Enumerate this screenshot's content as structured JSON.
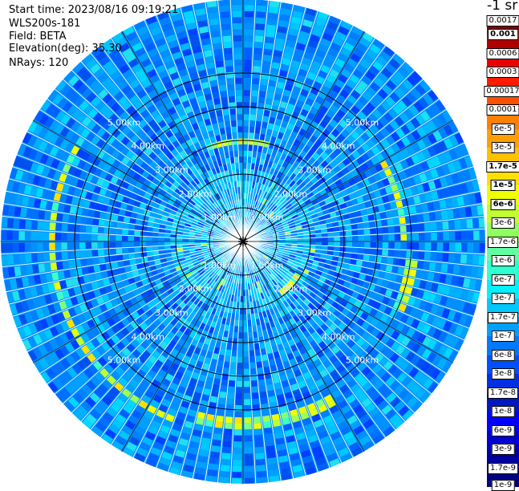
{
  "header": {
    "start_time": "Start time: 2023/08/16 09:19:21",
    "device": "WLS200s-181",
    "field": "Field: BETA",
    "elevation": "Elevation(deg): 35.30",
    "nrays": "NRays: 120"
  },
  "colorbar": {
    "units": "-1 sr",
    "labels": [
      "0.0017",
      "0.001",
      "0.0006",
      "0.0003",
      "0.00017",
      "0.0001",
      "6e-5",
      "3e-5",
      "1.7e-5",
      "1e-5",
      "6e-6",
      "3e-6",
      "1.7e-6",
      "1e-6",
      "6e-7",
      "3e-7",
      "1.7e-7",
      "1e-7",
      "6e-8",
      "3e-8",
      "1.7e-8",
      "1e-8",
      "6e-9",
      "3e-9",
      "1.7e-9",
      "1e-9"
    ],
    "colors": [
      "#800000",
      "#b00000",
      "#e80000",
      "#ff1a00",
      "#ff5000",
      "#ff7f00",
      "#ffa000",
      "#ffc000",
      "#ffe000",
      "#f0ff00",
      "#c0ff30",
      "#90ff60",
      "#60ffa0",
      "#30ffd0",
      "#00f0ff",
      "#00c8ff",
      "#00a0ff",
      "#0078ff",
      "#0050ff",
      "#0030e0",
      "#0018c0",
      "#0000ff",
      "#0000d0",
      "#0000a0",
      "#000080"
    ],
    "bold_labels": [
      "0.001",
      "1.7e-5",
      "1e-5",
      "6e-6"
    ]
  },
  "chart_data": {
    "type": "heatmap",
    "projection": "polar PPI scan",
    "field": "BETA",
    "elevation_deg": 35.3,
    "nrays": 120,
    "range_ring_labels": [
      "1.00km",
      "2.00km",
      "3.00km",
      "4.00km",
      "5.00km"
    ],
    "range_rings_km": [
      1,
      2,
      3,
      4,
      5
    ],
    "max_range_km": 7.2,
    "spokes_deg": [
      0,
      30,
      60,
      90,
      120,
      150,
      180,
      210,
      240,
      270,
      300,
      330
    ],
    "dominant_value_range": "1e-8 to 1.7e-7",
    "features": [
      {
        "description": "enhanced backscatter arc",
        "range_km": 5.7,
        "azimuth_start_deg": 200,
        "azimuth_end_deg": 300,
        "value": "6e-6"
      },
      {
        "description": "enhanced backscatter arc",
        "range_km": 5.0,
        "azimuth_start_deg": 95,
        "azimuth_end_deg": 115,
        "value": "3e-6"
      },
      {
        "description": "enhanced backscatter arc",
        "range_km": 4.75,
        "azimuth_start_deg": 60,
        "azimuth_end_deg": 90,
        "value": "1.7e-6"
      },
      {
        "description": "enhanced backscatter arc",
        "range_km": 5.4,
        "azimuth_start_deg": 150,
        "azimuth_end_deg": 195,
        "value": "3e-6"
      },
      {
        "description": "enhanced backscatter arc",
        "range_km": 2.95,
        "azimuth_start_deg": 340,
        "azimuth_end_deg": 15,
        "value": "1e-6"
      },
      {
        "description": "enhanced backscatter arc",
        "range_km": 1.85,
        "azimuth_start_deg": 120,
        "azimuth_end_deg": 145,
        "value": "3e-6"
      }
    ]
  }
}
